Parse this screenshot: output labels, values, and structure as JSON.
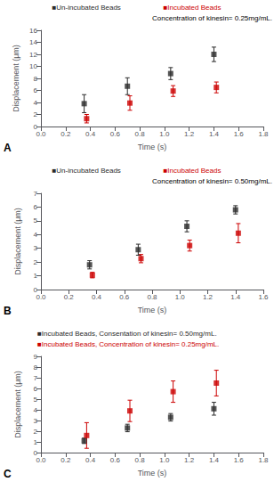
{
  "chart_data": [
    {
      "type": "scatter",
      "subtitle": "Concentration of kinesin= 0.25mg/mL.",
      "xlabel": "Time (s)",
      "ylabel": "Displacement (μm)",
      "annotations": [
        "A"
      ],
      "grid": false,
      "xlim": [
        0,
        1.8
      ],
      "ylim": [
        0,
        16
      ],
      "xticks": [
        {
          "value": 0,
          "label": "0.0"
        },
        0.2,
        0.4,
        0.6,
        0.8,
        {
          "value": 1.0,
          "label": "1.0"
        },
        1.2,
        1.4,
        1.6,
        1.8
      ],
      "yticks": [
        0,
        2,
        4,
        6,
        8,
        10,
        12,
        14,
        16
      ],
      "series": [
        {
          "name": "■Un-incubated Beads",
          "color": "#2b2b2b",
          "marker": "square",
          "x": [
            0.35,
            0.7,
            1.05,
            1.4
          ],
          "values": [
            3.8,
            6.7,
            8.8,
            12.0
          ],
          "errors": [
            1.5,
            1.4,
            1.0,
            1.2
          ]
        },
        {
          "name": "■Incubated Beads",
          "color": "#cc0000",
          "marker": "square",
          "x": [
            0.37,
            0.72,
            1.07,
            1.42
          ],
          "values": [
            1.3,
            3.9,
            5.9,
            6.5
          ],
          "errors": [
            0.7,
            1.2,
            0.9,
            0.9
          ]
        }
      ]
    },
    {
      "type": "scatter",
      "subtitle": "Concentration of kinesin= 0.50mg/mL.",
      "xlabel": "Time (s)",
      "ylabel": "Displacement (μm)",
      "annotations": [
        "B"
      ],
      "grid": false,
      "xlim": [
        0,
        1.6
      ],
      "ylim": [
        0,
        7
      ],
      "xticks": [
        {
          "value": 0,
          "label": "0.0"
        },
        0.2,
        0.4,
        0.6,
        0.8,
        {
          "value": 1.0,
          "label": "1.0"
        },
        1.2,
        1.4,
        1.6
      ],
      "yticks": [
        0,
        1,
        2,
        3,
        4,
        5,
        6,
        7
      ],
      "series": [
        {
          "name": "■Un-incubated Beads",
          "color": "#2b2b2b",
          "marker": "square",
          "x": [
            0.35,
            0.7,
            1.05,
            1.4
          ],
          "values": [
            1.8,
            2.9,
            4.6,
            5.8
          ],
          "errors": [
            0.3,
            0.4,
            0.4,
            0.3
          ]
        },
        {
          "name": "■Incubated Beads",
          "color": "#cc0000",
          "marker": "square",
          "x": [
            0.37,
            0.72,
            1.07,
            1.42
          ],
          "values": [
            1.05,
            2.25,
            3.2,
            4.1
          ],
          "errors": [
            0.2,
            0.3,
            0.4,
            0.7
          ]
        }
      ]
    },
    {
      "type": "scatter",
      "xlabel": "Time (s)",
      "ylabel": "Displacement (μm)",
      "annotations": [
        "C"
      ],
      "grid": false,
      "xlim": [
        0,
        1.8
      ],
      "ylim": [
        0,
        9
      ],
      "xticks": [
        {
          "value": 0,
          "label": "0.0"
        },
        0.2,
        0.4,
        0.6,
        0.8,
        {
          "value": 1.0,
          "label": "1.0"
        },
        1.2,
        1.4,
        1.6,
        1.8
      ],
      "yticks": [
        0,
        1,
        2,
        3,
        4,
        5,
        6,
        7,
        8,
        9
      ],
      "series": [
        {
          "name": "■Incubated Beads, Consentation of kinesin= 0.50mg/mL.",
          "color": "#2b2b2b",
          "marker": "square",
          "x": [
            0.35,
            0.7,
            1.05,
            1.4
          ],
          "values": [
            1.1,
            2.3,
            3.3,
            4.1
          ],
          "errors": [
            0.25,
            0.35,
            0.35,
            0.6
          ]
        },
        {
          "name": "■Incubated Beads, Concentration of kinesin= 0.25mg/mL.",
          "color": "#cc0000",
          "marker": "square",
          "x": [
            0.37,
            0.72,
            1.07,
            1.42
          ],
          "values": [
            1.6,
            3.9,
            5.7,
            6.5
          ],
          "errors": [
            1.2,
            1.0,
            1.0,
            1.2
          ]
        }
      ]
    }
  ]
}
